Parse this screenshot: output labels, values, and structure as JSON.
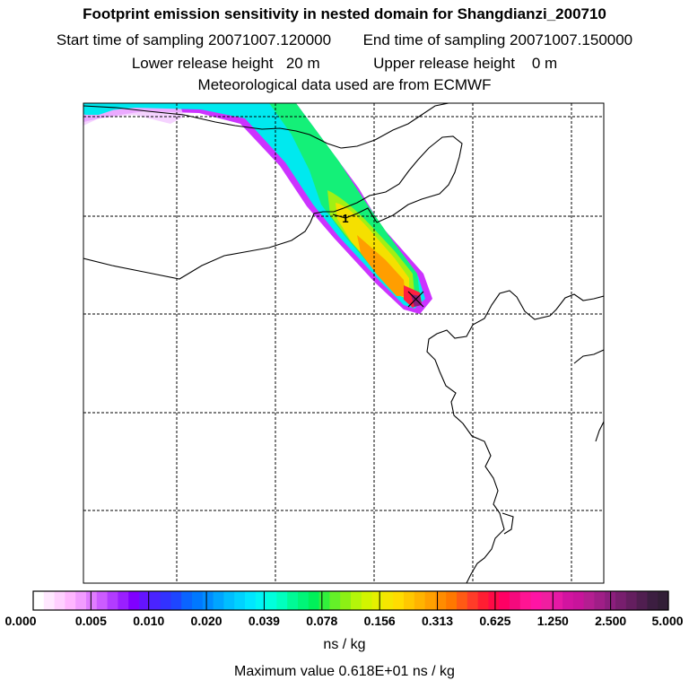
{
  "header": {
    "title": "Footprint emission sensitivity in nested domain for Shangdianzi_200710",
    "start_label": "Start time of sampling",
    "start_value": "20071007.120000",
    "end_label": "End time of sampling",
    "end_value": "20071007.150000",
    "lower_label": "Lower release height",
    "lower_value": "20 m",
    "upper_label": "Upper release height",
    "upper_value": "0 m",
    "met_text": "Meteorological data used are from ECMWF"
  },
  "colorbar": {
    "ticks": [
      "0.000",
      "0.005",
      "0.010",
      "0.020",
      "0.039",
      "0.078",
      "0.156",
      "0.313",
      "0.625",
      "1.250",
      "2.500",
      "5.000"
    ],
    "colors": [
      "#ffffff",
      "#ffe8ff",
      "#ffd0ff",
      "#ffb6ff",
      "#f29cff",
      "#e07cff",
      "#cc5cff",
      "#b23cff",
      "#9a1fff",
      "#8000ff",
      "#6414ff",
      "#4a23ff",
      "#3232ff",
      "#1e46ff",
      "#0a64ff",
      "#0078ff",
      "#008cff",
      "#00a5ff",
      "#00beff",
      "#00d2ff",
      "#00e6ff",
      "#00f5f5",
      "#00ffdc",
      "#00ffbe",
      "#00fa96",
      "#00f578",
      "#00f05a",
      "#32f03c",
      "#64f028",
      "#8cf014",
      "#b4f50a",
      "#d2f500",
      "#e6f000",
      "#f5e600",
      "#ffdc00",
      "#ffc800",
      "#ffb400",
      "#ffa000",
      "#ff8c00",
      "#ff7800",
      "#ff5a14",
      "#ff3c28",
      "#ff1e32",
      "#ff0a46",
      "#ff0064",
      "#f50a7d",
      "#ff1493",
      "#ff14a5",
      "#f01ea0",
      "#e619a5",
      "#d214a0",
      "#c8149b",
      "#b41e91",
      "#a01e87",
      "#8c1e7d",
      "#781e6e",
      "#641e5f",
      "#501e50",
      "#3c1e41",
      "#321e37"
    ],
    "unit": "ns / kg"
  },
  "max_value_text": "Maximum value  0.618E+01 ns / kg",
  "map": {
    "receptor_marker": "1",
    "plume_levels": [
      "purple-edge",
      "cyan",
      "green",
      "yellow",
      "orange",
      "red",
      "dark-magenta-peak"
    ]
  },
  "colors": {
    "frame": "#000000",
    "gridline": "#000000"
  }
}
